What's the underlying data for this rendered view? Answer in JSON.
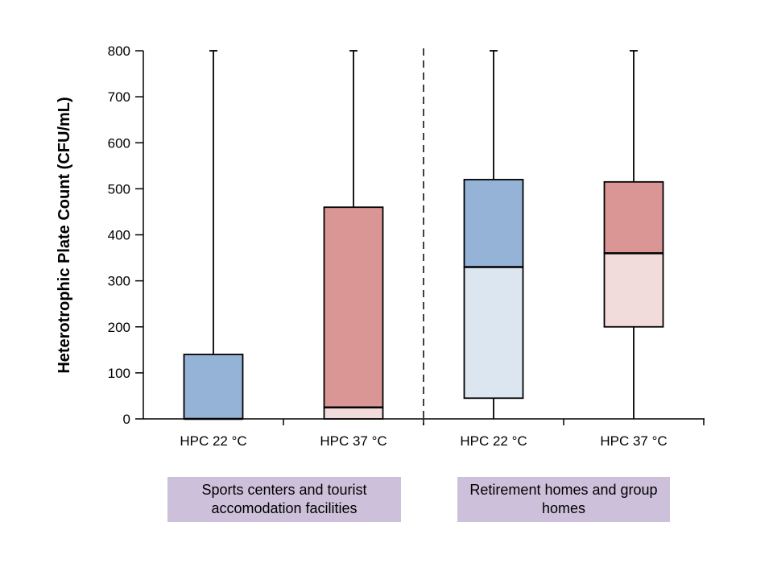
{
  "chart_data": {
    "type": "boxplot",
    "title": "",
    "ylabel": "Heterotrophic Plate Count (CFU/mL)",
    "xlabel": "",
    "ylim": [
      0,
      800
    ],
    "yticks": [
      0,
      100,
      200,
      300,
      400,
      500,
      600,
      700,
      800
    ],
    "grid": false,
    "legend": false,
    "categories": [
      "HPC 22 °C",
      "HPC 37 °C",
      "HPC 22 °C",
      "HPC 37 °C"
    ],
    "groups": [
      {
        "label": "Sports centers and tourist accomodation facilities",
        "category_indexes": [
          0,
          1
        ],
        "label_bg": "#ccc0da"
      },
      {
        "label": "Retirement homes and group homes",
        "category_indexes": [
          2,
          3
        ],
        "label_bg": "#ccc0da"
      }
    ],
    "divider": {
      "style": "dashed",
      "between_categories": [
        1,
        2
      ]
    },
    "boxes": [
      {
        "category": "HPC 22 °C",
        "group": "Sports centers and tourist accomodation facilities",
        "whisker_low": 0,
        "q1": 0,
        "median": 0,
        "q3": 140,
        "whisker_high": 800,
        "fill_upper": "#95b3d7",
        "fill_lower": "#dce6f1"
      },
      {
        "category": "HPC 37 °C",
        "group": "Sports centers and tourist accomodation facilities",
        "whisker_low": 0,
        "q1": 0,
        "median": 25,
        "q3": 460,
        "whisker_high": 800,
        "fill_upper": "#d99694",
        "fill_lower": "#f2dcdb"
      },
      {
        "category": "HPC 22 °C",
        "group": "Retirement homes and group homes",
        "whisker_low": 0,
        "q1": 45,
        "median": 330,
        "q3": 520,
        "whisker_high": 800,
        "fill_upper": "#95b3d7",
        "fill_lower": "#dce6f1"
      },
      {
        "category": "HPC 37 °C",
        "group": "Retirement homes and group homes",
        "whisker_low": 0,
        "q1": 200,
        "median": 360,
        "q3": 515,
        "whisker_high": 800,
        "fill_upper": "#d99694",
        "fill_lower": "#f2dcdb"
      }
    ],
    "colors": {
      "box_border": "#000000",
      "whisker": "#000000",
      "axis": "#000000",
      "blue_dark": "#95b3d7",
      "blue_light": "#dce6f1",
      "red_dark": "#d99694",
      "red_light": "#f2dcdb",
      "group_label_bg": "#ccc0da",
      "background": "#ffffff"
    }
  }
}
